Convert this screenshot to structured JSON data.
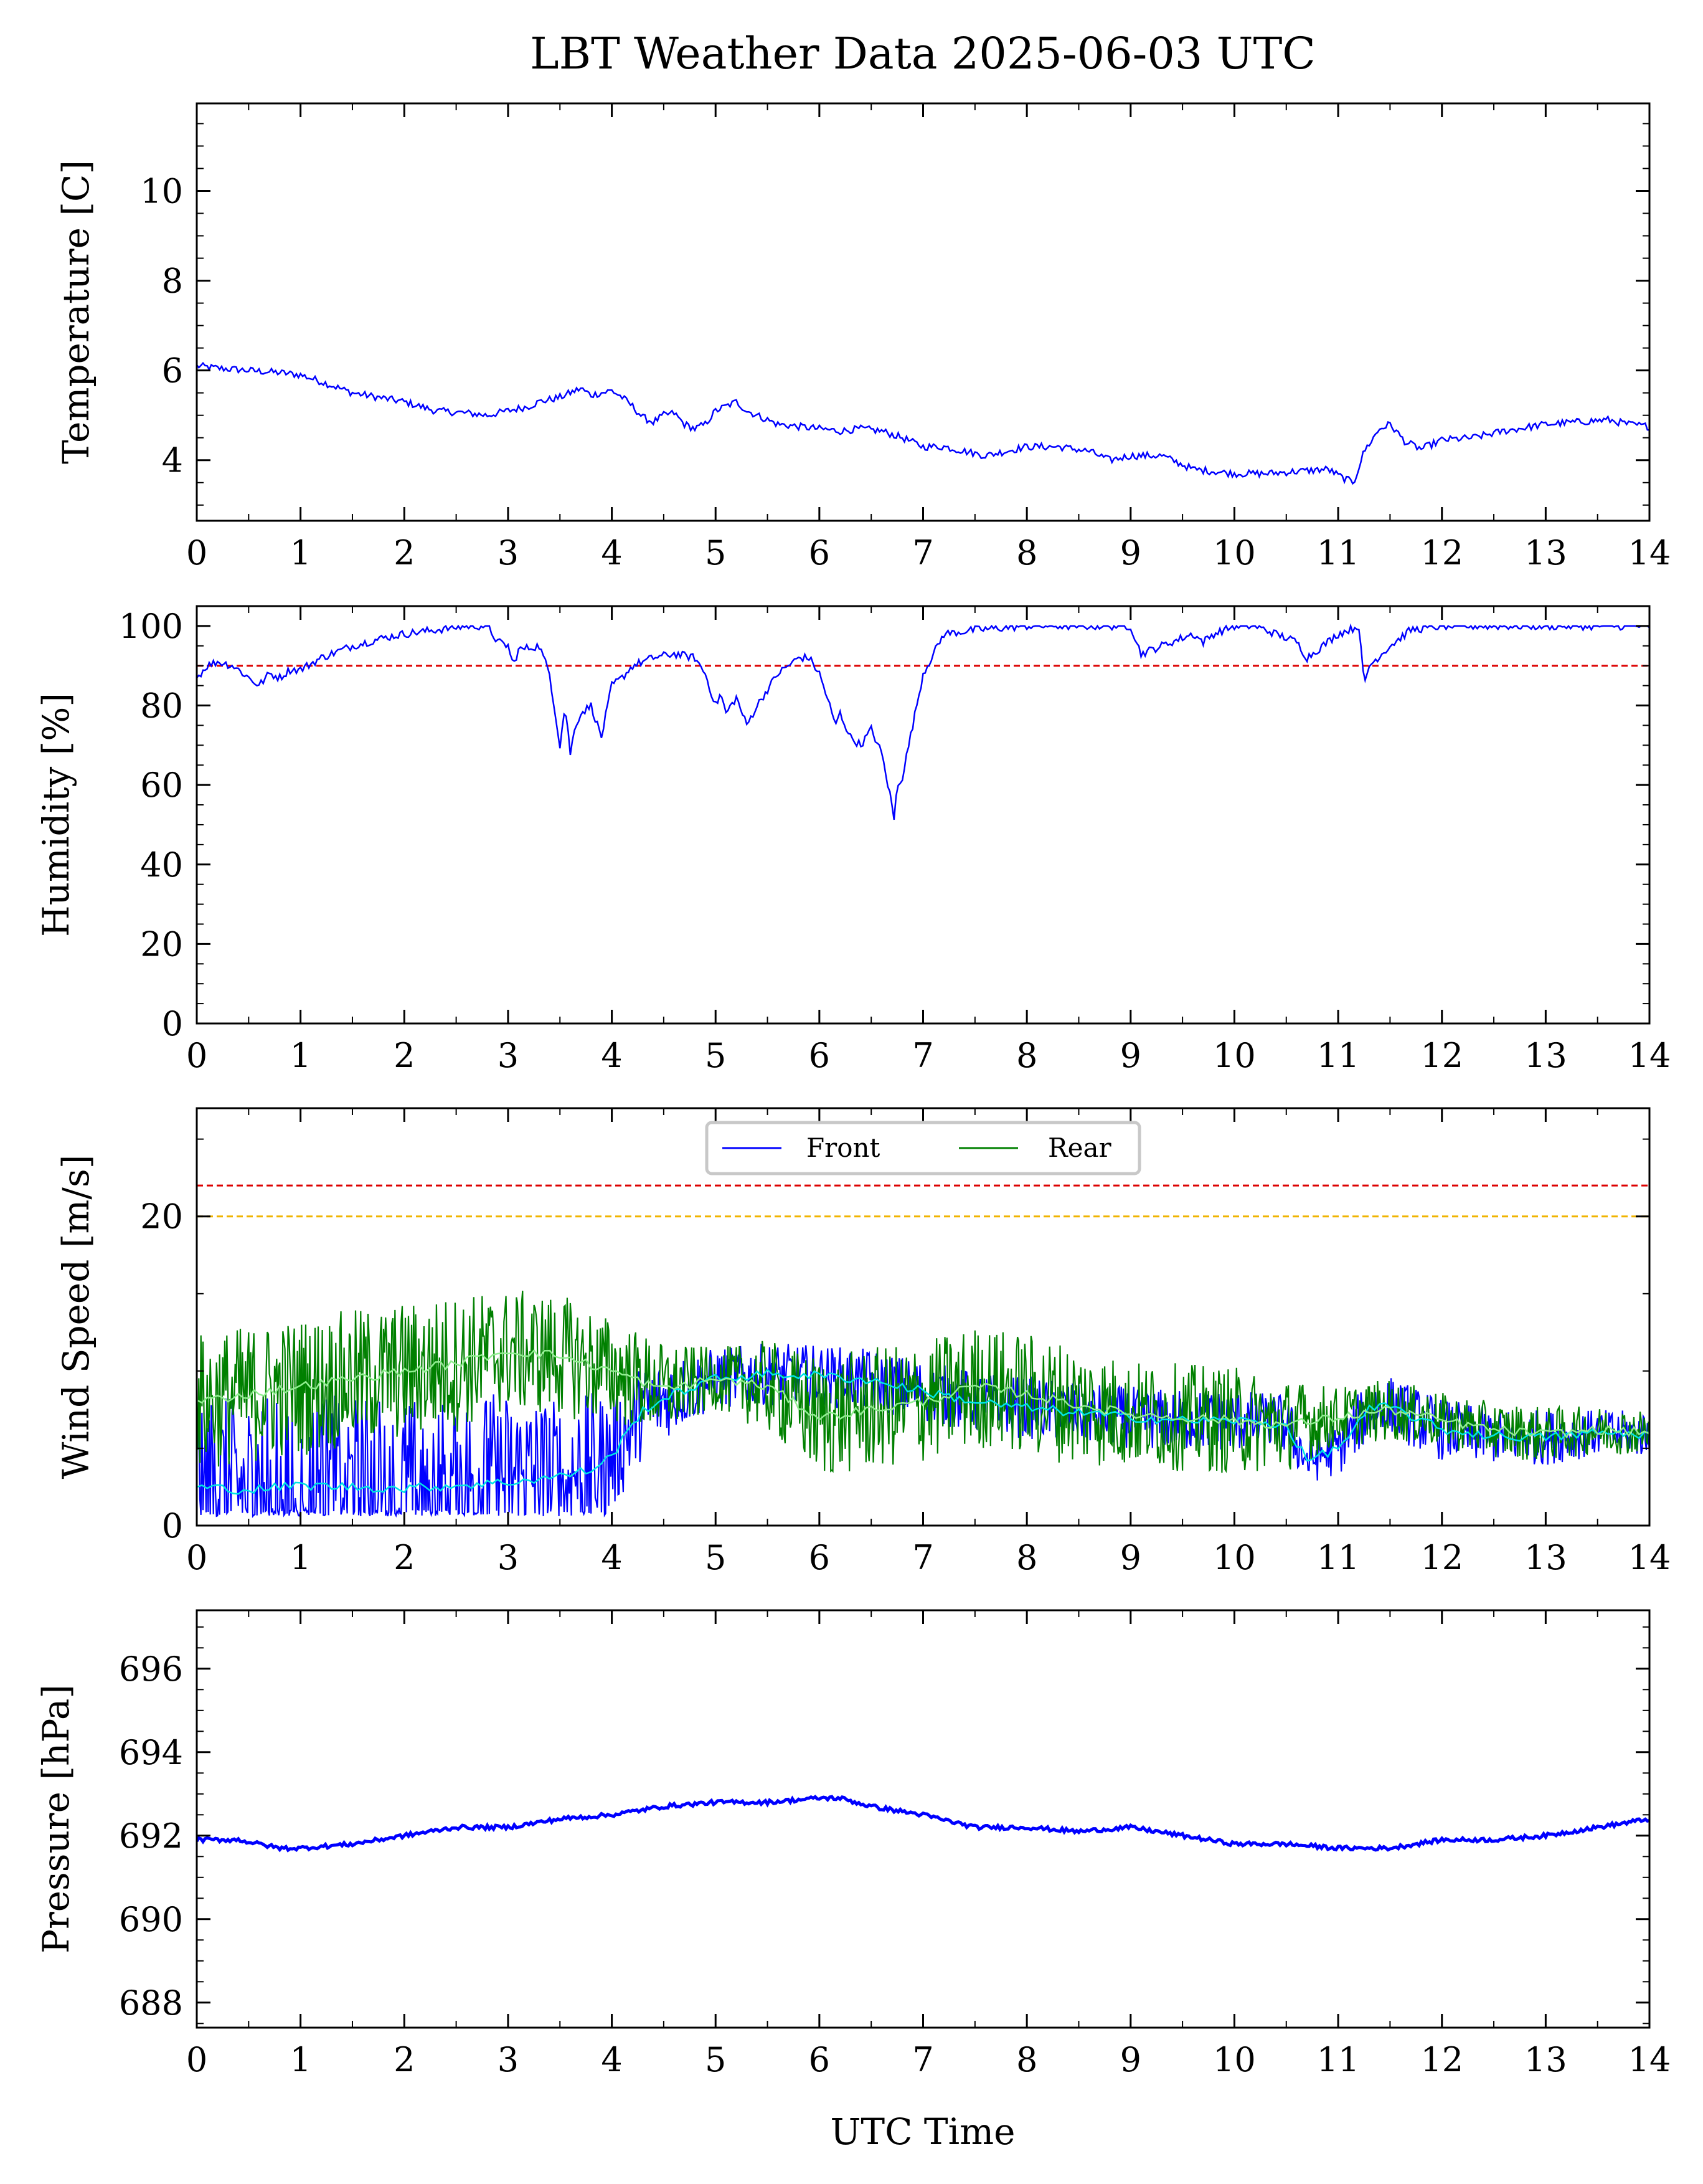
{
  "figure": {
    "title": "LBT Weather Data 2025-06-03 UTC",
    "xlabel": "UTC Time"
  },
  "colors": {
    "primary_series": "#0000ff",
    "rear_series": "#008000",
    "front_smoothed": "#00e5e5",
    "rear_smoothed": "#90ee90",
    "threshold_red": "#dd0000",
    "threshold_orange": "#f0b400"
  },
  "chart_data": [
    {
      "id": "temperature",
      "type": "line",
      "ylabel": "Temperature [C]",
      "xlim": [
        0,
        14
      ],
      "ylim": [
        2.65,
        11.95
      ],
      "xticks": [
        "0",
        "1",
        "2",
        "3",
        "4",
        "5",
        "6",
        "7",
        "8",
        "9",
        "10",
        "11",
        "12",
        "13",
        "14"
      ],
      "yticks": [
        "4",
        "6",
        "8",
        "10"
      ],
      "series": [
        {
          "x": [
            0,
            0.2,
            0.5,
            0.8,
            1.0,
            1.2,
            1.5,
            2.0,
            2.3,
            2.6,
            2.8,
            3.0,
            3.2,
            3.3,
            3.5,
            3.6,
            3.7,
            3.8,
            3.9,
            4.0,
            4.1,
            4.2,
            4.3,
            4.4,
            4.5,
            4.6,
            4.7,
            4.8,
            4.9,
            5.0,
            5.1,
            5.2,
            5.3,
            5.4,
            5.5,
            5.6,
            5.8,
            6.0,
            6.2,
            6.4,
            6.6,
            6.8,
            7.0,
            7.2,
            7.4,
            7.6,
            7.8,
            8.0,
            8.3,
            8.6,
            8.8,
            9.0,
            9.3,
            9.6,
            9.8,
            10.0,
            10.3,
            10.6,
            10.9,
            11.05,
            11.15,
            11.25,
            11.4,
            11.5,
            11.65,
            11.8,
            12.0,
            12.3,
            12.6,
            13.0,
            13.3,
            13.6,
            13.8,
            14.0
          ],
          "y": [
            6.1,
            6.05,
            6.0,
            5.95,
            5.9,
            5.75,
            5.5,
            5.3,
            5.1,
            5.05,
            5.0,
            5.1,
            5.2,
            5.3,
            5.4,
            5.5,
            5.6,
            5.45,
            5.5,
            5.55,
            5.4,
            5.2,
            4.95,
            4.85,
            5.0,
            5.05,
            4.8,
            4.7,
            4.8,
            5.1,
            5.2,
            5.3,
            5.1,
            5.0,
            4.9,
            4.8,
            4.75,
            4.7,
            4.65,
            4.7,
            4.65,
            4.5,
            4.3,
            4.3,
            4.2,
            4.1,
            4.2,
            4.3,
            4.3,
            4.2,
            4.0,
            4.1,
            4.1,
            3.8,
            3.75,
            3.7,
            3.7,
            3.75,
            3.8,
            3.6,
            3.5,
            4.2,
            4.7,
            4.8,
            4.4,
            4.25,
            4.45,
            4.5,
            4.65,
            4.8,
            4.85,
            4.9,
            4.8,
            4.75
          ]
        }
      ]
    },
    {
      "id": "humidity",
      "type": "line",
      "ylabel": "Humidity [%]",
      "xlim": [
        0,
        14
      ],
      "ylim": [
        0,
        105
      ],
      "xticks": [
        "0",
        "1",
        "2",
        "3",
        "4",
        "5",
        "6",
        "7",
        "8",
        "9",
        "10",
        "11",
        "12",
        "13",
        "14"
      ],
      "yticks": [
        "0",
        "20",
        "40",
        "60",
        "80",
        "100"
      ],
      "threshold": 90,
      "series": [
        {
          "x": [
            0,
            0.1,
            0.2,
            0.35,
            0.5,
            0.6,
            0.7,
            0.8,
            0.9,
            1.0,
            1.2,
            1.5,
            1.8,
            2.0,
            2.3,
            2.6,
            2.8,
            2.9,
            3.0,
            3.05,
            3.1,
            3.3,
            3.4,
            3.5,
            3.55,
            3.6,
            3.65,
            3.7,
            3.8,
            3.9,
            4.0,
            4.1,
            4.2,
            4.4,
            4.6,
            4.8,
            4.9,
            5.0,
            5.05,
            5.1,
            5.15,
            5.2,
            5.3,
            5.4,
            5.6,
            5.8,
            5.9,
            6.0,
            6.1,
            6.15,
            6.2,
            6.3,
            6.4,
            6.5,
            6.6,
            6.7,
            6.72,
            6.75,
            6.8,
            6.9,
            7.0,
            7.1,
            7.2,
            7.5,
            8.0,
            8.5,
            9.0,
            9.1,
            9.2,
            9.4,
            9.6,
            9.7,
            9.8,
            10.0,
            10.2,
            10.4,
            10.6,
            10.7,
            10.8,
            11.0,
            11.1,
            11.2,
            11.25,
            11.3,
            11.5,
            11.7,
            12.0,
            12.5,
            13.0,
            13.5,
            14.0
          ],
          "y": [
            87,
            90,
            91,
            90,
            87,
            85,
            88,
            87,
            89,
            89,
            92,
            95,
            97,
            98,
            99,
            100,
            100,
            96,
            95,
            90,
            94,
            95,
            88,
            70,
            80,
            68,
            75,
            78,
            80,
            72,
            85,
            87,
            90,
            92,
            93,
            92,
            88,
            80,
            83,
            78,
            80,
            82,
            75,
            80,
            88,
            92,
            92,
            88,
            80,
            75,
            78,
            72,
            70,
            74,
            68,
            55,
            51,
            60,
            62,
            75,
            88,
            93,
            98,
            99,
            100,
            100,
            100,
            93,
            94,
            96,
            98,
            96,
            98,
            100,
            100,
            98,
            96,
            92,
            94,
            98,
            99,
            100,
            85,
            90,
            95,
            99,
            100,
            100,
            100,
            100,
            100
          ]
        }
      ]
    },
    {
      "id": "wind",
      "type": "line",
      "ylabel": "Wind Speed [m/s]",
      "xlim": [
        0,
        14
      ],
      "ylim": [
        0,
        27
      ],
      "xticks": [
        "0",
        "1",
        "2",
        "3",
        "4",
        "5",
        "6",
        "7",
        "8",
        "9",
        "10",
        "11",
        "12",
        "13",
        "14"
      ],
      "yticks": [
        "0",
        "20"
      ],
      "thresholds": [
        22,
        20
      ],
      "legend": {
        "placement": "upper-center",
        "entries": [
          "Front",
          "Rear"
        ]
      },
      "series": [
        {
          "name": "Front",
          "x": [
            0,
            0.5,
            1.0,
            1.5,
            2.0,
            2.5,
            3.0,
            3.5,
            3.8,
            4.0,
            4.3,
            4.6,
            5.0,
            5.5,
            6.0,
            6.5,
            7.0,
            7.5,
            8.0,
            8.5,
            9.0,
            9.5,
            10.0,
            10.5,
            10.7,
            11.0,
            11.3,
            11.5,
            12.0,
            12.5,
            13.0,
            13.5,
            14.0
          ],
          "mean": [
            2.5,
            2.3,
            2.6,
            2.5,
            2.4,
            2.6,
            2.8,
            3.2,
            3.6,
            4.5,
            7.5,
            8.5,
            9.5,
            9.8,
            9.7,
            9.4,
            8.7,
            8.0,
            7.6,
            7.3,
            7.0,
            6.8,
            6.8,
            6.5,
            4.2,
            5.0,
            7.5,
            7.7,
            6.2,
            5.8,
            5.7,
            6.0,
            5.9
          ],
          "spread": [
            6,
            6,
            6,
            6,
            6,
            6,
            6,
            5,
            5,
            4,
            3,
            2.5,
            2,
            2,
            2,
            2,
            2,
            2,
            2,
            2,
            2,
            2,
            2,
            2,
            1.5,
            1.8,
            2,
            2,
            2,
            1.8,
            1.8,
            1.5,
            1.5
          ]
        },
        {
          "name": "Rear",
          "x": [
            0,
            0.5,
            1.0,
            1.5,
            2.0,
            2.5,
            3.0,
            3.5,
            4.0,
            4.5,
            5.0,
            5.5,
            6.0,
            6.5,
            7.0,
            7.5,
            8.0,
            8.5,
            9.0,
            9.5,
            10.0,
            10.5,
            11.0,
            11.5,
            12.0,
            12.5,
            13.0,
            13.5,
            14.0
          ],
          "mean": [
            8.0,
            8.5,
            9.0,
            9.5,
            10.0,
            10.5,
            11.3,
            11.0,
            10.0,
            8.8,
            9.5,
            9.0,
            7.0,
            7.5,
            8.0,
            9.0,
            8.5,
            7.8,
            7.2,
            7.0,
            6.8,
            6.5,
            7.0,
            7.5,
            6.8,
            6.2,
            5.9,
            6.2,
            6.0
          ],
          "spread": [
            4.5,
            4.5,
            4.5,
            4.5,
            4.5,
            4.5,
            4,
            4,
            3.5,
            3,
            2,
            3,
            4,
            4,
            4,
            4,
            4,
            4,
            3.5,
            3.5,
            3.5,
            3,
            2,
            2,
            1.8,
            1.8,
            1.8,
            1.5,
            1.5
          ]
        }
      ]
    },
    {
      "id": "pressure",
      "type": "line",
      "ylabel": "Pressure [hPa]",
      "xlim": [
        0,
        14
      ],
      "ylim": [
        687.4,
        697.4
      ],
      "xticks": [
        "0",
        "1",
        "2",
        "3",
        "4",
        "5",
        "6",
        "7",
        "8",
        "9",
        "10",
        "11",
        "12",
        "13",
        "14"
      ],
      "yticks": [
        "688",
        "690",
        "692",
        "694",
        "696"
      ],
      "series": [
        {
          "x": [
            0,
            0.4,
            0.8,
            1.0,
            1.5,
            2.0,
            2.5,
            3.0,
            3.5,
            4.0,
            4.5,
            5.0,
            5.5,
            6.0,
            6.2,
            6.5,
            7.0,
            7.5,
            8.0,
            8.5,
            9.0,
            9.5,
            10.0,
            10.5,
            11.0,
            11.5,
            12.0,
            12.5,
            13.0,
            13.5,
            14.0
          ],
          "y": [
            691.9,
            691.9,
            691.7,
            691.7,
            691.8,
            692.0,
            692.2,
            692.2,
            692.4,
            692.5,
            692.7,
            692.8,
            692.8,
            692.9,
            692.9,
            692.7,
            692.5,
            692.2,
            692.2,
            692.1,
            692.2,
            692.0,
            691.8,
            691.8,
            691.7,
            691.7,
            691.9,
            691.9,
            692.0,
            692.2,
            692.4
          ]
        }
      ]
    }
  ]
}
